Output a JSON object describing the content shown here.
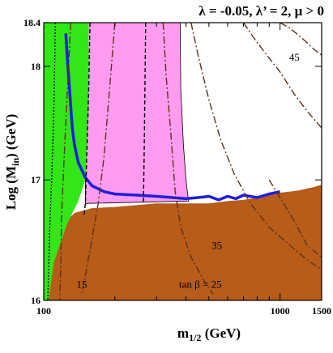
{
  "chart_data": {
    "type": "line",
    "title": "λ = -0.05, λ’ = 2,  μ > 0",
    "xlabel": "m",
    "xlabel_sub": "1/2",
    "xlabel_unit": " (GeV)",
    "ylabel": "Log (M",
    "ylabel_sub": "in",
    "ylabel_unit": ") (GeV)",
    "xscale": "log",
    "yscale": "log",
    "xlim": [
      100,
      1500
    ],
    "ylim": [
      16,
      18.4
    ],
    "x_ticks": [
      100,
      1000,
      1500
    ],
    "x_minor_ticks": [
      200,
      300,
      400,
      500,
      600,
      700,
      800,
      900
    ],
    "y_ticks": [
      {
        "value": 16,
        "label": "16"
      },
      {
        "value": 17,
        "label": "17"
      },
      {
        "value": 18,
        "label": "18"
      },
      {
        "value": 18.4,
        "label": "18.4"
      }
    ],
    "colors": {
      "stau_lsp_region": "#b85c1a",
      "higgs_excluded_region": "#ff9cf0",
      "relic_density_region": "#32e617",
      "wmap_strip": "#1f1fdd",
      "tan_beta_contour": "#5e3219"
    },
    "regions": [
      {
        "name": "stau-lsp",
        "color": "#b85c1a",
        "boundary": [
          [
            100,
            16.0
          ],
          [
            120,
            16.62
          ],
          [
            135,
            16.72
          ],
          [
            160,
            16.76
          ],
          [
            200,
            16.77
          ],
          [
            300,
            16.8
          ],
          [
            400,
            16.8
          ],
          [
            500,
            16.8
          ],
          [
            600,
            16.82
          ],
          [
            700,
            16.83
          ],
          [
            800,
            16.85
          ],
          [
            900,
            16.87
          ],
          [
            1000,
            16.89
          ],
          [
            1200,
            16.91
          ],
          [
            1400,
            16.94
          ],
          [
            1500,
            16.96
          ],
          [
            1500,
            16.0
          ]
        ]
      },
      {
        "name": "higgs-mass-excluded",
        "color": "#ff9cf0",
        "boundary": [
          [
            155,
            18.4
          ],
          [
            378,
            18.4
          ],
          [
            380,
            17.8
          ],
          [
            390,
            17.3
          ],
          [
            400,
            17.0
          ],
          [
            410,
            16.82
          ],
          [
            150,
            16.8
          ],
          [
            150,
            18.4
          ]
        ]
      },
      {
        "name": "relic-density",
        "color": "#32e617",
        "boundary": [
          [
            104,
            18.4
          ],
          [
            155,
            18.4
          ],
          [
            155,
            17.6
          ],
          [
            150,
            17.0
          ],
          [
            140,
            16.82
          ],
          [
            125,
            16.62
          ],
          [
            110,
            16.3
          ],
          [
            105,
            16.0
          ],
          [
            100,
            16.0
          ],
          [
            100,
            18.4
          ]
        ]
      }
    ],
    "series": [
      {
        "name": "wmap-strip",
        "style": "solid",
        "color": "#1f1fdd",
        "x": [
          124,
          126,
          128,
          130,
          132,
          135,
          140,
          150,
          160,
          180,
          200,
          250,
          300,
          350,
          400,
          450,
          500,
          550,
          600,
          650,
          700,
          800,
          900,
          1000
        ],
        "y": [
          18.3,
          18.05,
          17.85,
          17.65,
          17.45,
          17.3,
          17.15,
          17.02,
          16.95,
          16.9,
          16.88,
          16.87,
          16.86,
          16.85,
          16.84,
          16.85,
          16.86,
          16.83,
          16.86,
          16.84,
          16.87,
          16.85,
          16.88,
          16.9
        ]
      },
      {
        "name": "tan-beta-dotted-1",
        "style": "dotted",
        "color": "#000000",
        "x": [
          112,
          110,
          108,
          106,
          105,
          104
        ],
        "y": [
          18.4,
          17.5,
          17.0,
          16.6,
          16.3,
          16.0
        ]
      },
      {
        "name": "tan-beta-dashed-1",
        "style": "dashdot",
        "color": "#5e3219",
        "x": [
          130,
          126,
          122,
          119,
          118,
          117
        ],
        "y": [
          18.4,
          17.8,
          17.2,
          16.7,
          16.3,
          16.0
        ]
      },
      {
        "name": "tan-beta-dashed-2",
        "style": "dashed",
        "color": "#000000",
        "x": [
          157,
          155,
          152,
          150,
          148
        ],
        "y": [
          18.4,
          17.8,
          17.2,
          16.8,
          16.7
        ]
      },
      {
        "name": "tan-beta-contour-15",
        "style": "dashdot",
        "color": "#5e3219",
        "x": [
          200,
          190,
          180,
          170,
          160,
          150,
          145
        ],
        "y": [
          18.4,
          17.8,
          17.2,
          16.8,
          16.5,
          16.2,
          16.05
        ]
      },
      {
        "name": "tan-beta-dashed-3",
        "style": "dashed",
        "color": "#000000",
        "x": [
          270,
          268,
          266,
          264
        ],
        "y": [
          18.4,
          17.8,
          17.2,
          16.8
        ]
      },
      {
        "name": "tan-beta-contour-25",
        "style": "dashdot",
        "color": "#5e3219",
        "x": [
          320,
          330,
          345,
          360,
          380,
          420,
          480,
          520
        ],
        "y": [
          18.4,
          17.9,
          17.4,
          16.9,
          16.6,
          16.35,
          16.15,
          16.05
        ]
      },
      {
        "name": "tan-beta-contour-35",
        "style": "dashdot",
        "color": "#5e3219",
        "x": [
          420,
          450,
          500,
          560,
          640,
          750,
          900,
          1100,
          1300,
          1500
        ],
        "y": [
          18.4,
          18.1,
          17.7,
          17.35,
          17.05,
          16.8,
          16.6,
          16.45,
          16.33,
          16.25
        ]
      },
      {
        "name": "tan-beta-contour-45",
        "style": "dashdot",
        "color": "#5e3219",
        "x": [
          700,
          780,
          880,
          1000,
          1150,
          1300,
          1500
        ],
        "y": [
          18.4,
          18.25,
          18.1,
          17.95,
          17.75,
          17.6,
          17.45
        ]
      },
      {
        "name": "tan-beta-contour-upper",
        "style": "dashdot",
        "color": "#5e3219",
        "x": [
          1000,
          1100,
          1250,
          1400,
          1500
        ],
        "y": [
          18.4,
          18.35,
          18.25,
          18.15,
          18.1
        ]
      },
      {
        "name": "tan-beta-contour-right",
        "style": "dashdot",
        "color": "#5e3219",
        "x": [
          900,
          1000,
          1150,
          1300,
          1500
        ],
        "y": [
          17.0,
          16.85,
          16.65,
          16.45,
          16.35
        ]
      }
    ],
    "annotations": [
      {
        "text": "45",
        "x": 1150,
        "y": 18.05
      },
      {
        "text": "35",
        "x": 540,
        "y": 16.42
      },
      {
        "text": "15",
        "x": 145,
        "y": 16.1
      },
      {
        "text": "tan β = 25",
        "x": 460,
        "y": 16.1
      }
    ],
    "legend": "none",
    "grid": false
  }
}
